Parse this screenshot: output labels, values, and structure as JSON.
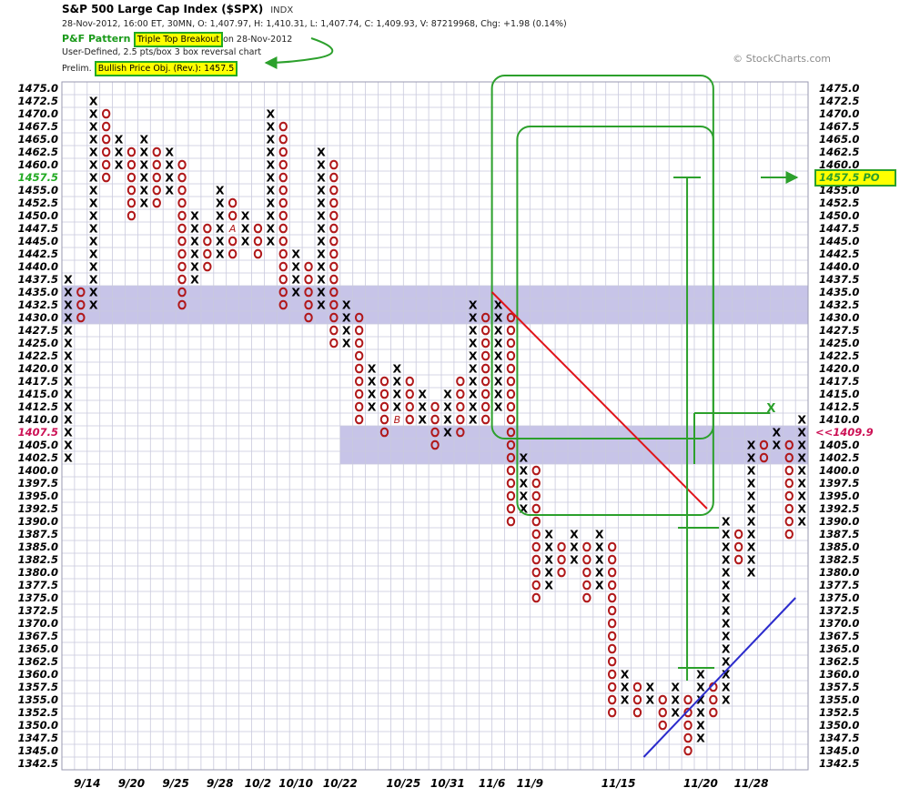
{
  "header": {
    "title": "S&P 500 Large Cap Index ($SPX)",
    "exchange": "INDX",
    "quote": "28-Nov-2012, 16:00 ET, 30MN, O: 1,407.97, H: 1,410.31, L: 1,407.74, C: 1,409.93, V: 87219968, Chg: +1.98 (0.14%)",
    "pattern_label": "P&F Pattern",
    "pattern_value": "Triple Top Breakout",
    "pattern_date": "on 28-Nov-2012",
    "chart_settings": "User-Defined, 2.5 pts/box 3 box reversal chart",
    "prelim_label": "Prelim.",
    "prelim_value": "Bullish Price Obj. (Rev.): 1457.5",
    "credit": "© StockCharts.com"
  },
  "chart_data": {
    "type": "point-and-figure",
    "box_size": 2.5,
    "reversal": 3,
    "ylim": [
      1342.5,
      1475.0
    ],
    "y_tick_labels": [
      "1475.0",
      "1472.5",
      "1470.0",
      "1467.5",
      "1465.0",
      "1462.5",
      "1460.0",
      "1457.5",
      "1455.0",
      "1452.5",
      "1450.0",
      "1447.5",
      "1445.0",
      "1442.5",
      "1440.0",
      "1437.5",
      "1435.0",
      "1432.5",
      "1430.0",
      "1427.5",
      "1425.0",
      "1422.5",
      "1420.0",
      "1417.5",
      "1415.0",
      "1412.5",
      "1410.0",
      "1407.5",
      "1405.0",
      "1402.5",
      "1400.0",
      "1397.5",
      "1395.0",
      "1392.5",
      "1390.0",
      "1387.5",
      "1385.0",
      "1382.5",
      "1380.0",
      "1377.5",
      "1375.0",
      "1372.5",
      "1370.0",
      "1367.5",
      "1365.0",
      "1362.5",
      "1360.0",
      "1357.5",
      "1355.0",
      "1352.5",
      "1350.0",
      "1347.5",
      "1345.0",
      "1342.5"
    ],
    "highlighted_left_labels": [
      {
        "price": 1457.5,
        "text": "1457.5",
        "color": "#22aa22"
      },
      {
        "price": 1407.5,
        "text": "1407.5",
        "color": "#cc1155"
      }
    ],
    "x_date_labels": [
      {
        "col": 2,
        "text": "9/14"
      },
      {
        "col": 5.5,
        "text": "9/20"
      },
      {
        "col": 9,
        "text": "9/25"
      },
      {
        "col": 12.5,
        "text": "9/28"
      },
      {
        "col": 15.5,
        "text": "10/2"
      },
      {
        "col": 18.5,
        "text": "10/10"
      },
      {
        "col": 22,
        "text": "10/22"
      },
      {
        "col": 27,
        "text": "10/25"
      },
      {
        "col": 30.5,
        "text": "10/31"
      },
      {
        "col": 34,
        "text": "11/6"
      },
      {
        "col": 37,
        "text": "11/9"
      },
      {
        "col": 44,
        "text": "11/15"
      },
      {
        "col": 50.5,
        "text": "11/20"
      },
      {
        "col": 54.5,
        "text": "11/28"
      }
    ],
    "columns": [
      {
        "type": "X",
        "low": 1402.5,
        "high": 1437.5
      },
      {
        "type": "O",
        "low": 1430.0,
        "high": 1435.0
      },
      {
        "type": "X",
        "low": 1432.5,
        "high": 1472.5
      },
      {
        "type": "O",
        "low": 1457.5,
        "high": 1470.0
      },
      {
        "type": "X",
        "low": 1460.0,
        "high": 1465.0
      },
      {
        "type": "O",
        "low": 1450.0,
        "high": 1462.5
      },
      {
        "type": "X",
        "low": 1452.5,
        "high": 1465.0
      },
      {
        "type": "O",
        "low": 1452.5,
        "high": 1462.5
      },
      {
        "type": "X",
        "low": 1455.0,
        "high": 1462.5
      },
      {
        "type": "O",
        "low": 1432.5,
        "high": 1460.0
      },
      {
        "type": "X",
        "low": 1437.5,
        "high": 1450.0
      },
      {
        "type": "O",
        "low": 1440.0,
        "high": 1447.5
      },
      {
        "type": "X",
        "low": 1442.5,
        "high": 1455.0
      },
      {
        "type": "O",
        "low": 1442.5,
        "high": 1452.5
      },
      {
        "type": "X",
        "low": 1445.0,
        "high": 1450.0
      },
      {
        "type": "O",
        "low": 1442.5,
        "high": 1447.5
      },
      {
        "type": "X",
        "low": 1445.0,
        "high": 1470.0
      },
      {
        "type": "O",
        "low": 1432.5,
        "high": 1467.5
      },
      {
        "type": "X",
        "low": 1435.0,
        "high": 1442.5
      },
      {
        "type": "O",
        "low": 1430.0,
        "high": 1440.0
      },
      {
        "type": "X",
        "low": 1432.5,
        "high": 1462.5
      },
      {
        "type": "O",
        "low": 1425.0,
        "high": 1460.0
      },
      {
        "type": "X",
        "low": 1425.0,
        "high": 1432.5
      },
      {
        "type": "O",
        "low": 1410.0,
        "high": 1430.0
      },
      {
        "type": "X",
        "low": 1412.5,
        "high": 1420.0
      },
      {
        "type": "O",
        "low": 1407.5,
        "high": 1417.5
      },
      {
        "type": "X",
        "low": 1410.0,
        "high": 1420.0
      },
      {
        "type": "O",
        "low": 1410.0,
        "high": 1417.5
      },
      {
        "type": "X",
        "low": 1410.0,
        "high": 1415.0
      },
      {
        "type": "O",
        "low": 1405.0,
        "high": 1412.5
      },
      {
        "type": "X",
        "low": 1407.5,
        "high": 1415.0
      },
      {
        "type": "O",
        "low": 1407.5,
        "high": 1417.5
      },
      {
        "type": "X",
        "low": 1410.0,
        "high": 1432.5
      },
      {
        "type": "O",
        "low": 1410.0,
        "high": 1430.0
      },
      {
        "type": "X",
        "low": 1412.5,
        "high": 1432.5
      },
      {
        "type": "O",
        "low": 1390.0,
        "high": 1430.0
      },
      {
        "type": "X",
        "low": 1392.5,
        "high": 1402.5
      },
      {
        "type": "O",
        "low": 1375.0,
        "high": 1400.0
      },
      {
        "type": "X",
        "low": 1377.5,
        "high": 1387.5
      },
      {
        "type": "O",
        "low": 1380.0,
        "high": 1385.0
      },
      {
        "type": "X",
        "low": 1382.5,
        "high": 1387.5
      },
      {
        "type": "O",
        "low": 1375.0,
        "high": 1385.0
      },
      {
        "type": "X",
        "low": 1377.5,
        "high": 1387.5
      },
      {
        "type": "O",
        "low": 1352.5,
        "high": 1385.0
      },
      {
        "type": "X",
        "low": 1355.0,
        "high": 1360.0
      },
      {
        "type": "O",
        "low": 1352.5,
        "high": 1357.5
      },
      {
        "type": "X",
        "low": 1355.0,
        "high": 1357.5
      },
      {
        "type": "O",
        "low": 1350.0,
        "high": 1355.0
      },
      {
        "type": "X",
        "low": 1352.5,
        "high": 1357.5
      },
      {
        "type": "O",
        "low": 1345.0,
        "high": 1355.0
      },
      {
        "type": "X",
        "low": 1347.5,
        "high": 1360.0
      },
      {
        "type": "O",
        "low": 1352.5,
        "high": 1357.5
      },
      {
        "type": "X",
        "low": 1355.0,
        "high": 1390.0
      },
      {
        "type": "O",
        "low": 1382.5,
        "high": 1387.5
      },
      {
        "type": "X",
        "low": 1380.0,
        "high": 1405.0
      },
      {
        "type": "O",
        "low": 1402.5,
        "high": 1405.0
      },
      {
        "type": "X",
        "low": 1405.0,
        "high": 1407.5
      },
      {
        "type": "O",
        "low": 1387.5,
        "high": 1405.0
      },
      {
        "type": "X",
        "low": 1390.0,
        "high": 1410.0
      }
    ],
    "month_markers": [
      {
        "col": 13,
        "price": 1447.5,
        "text": "A"
      },
      {
        "col": 26,
        "price": 1410.0,
        "text": "B"
      }
    ],
    "resistance_bands": [
      {
        "low": 1430.0,
        "high": 1435.0,
        "from_col": 0
      },
      {
        "low": 1402.5,
        "high": 1407.5,
        "from_col": 22
      }
    ],
    "price_objective": {
      "price": 1457.5,
      "label": "1457.5 PO"
    },
    "last_price_label": "<<1409.9",
    "bearish_trendline": {
      "from_col": 34,
      "from_price": 1435.0,
      "to_col": 51,
      "to_price": 1392.5
    },
    "bullish_trendline": {
      "from_col": 46,
      "from_price": 1345.0,
      "to_col": 58,
      "to_price": 1375.0
    },
    "target_bar": {
      "col": 49,
      "low": 1360.0,
      "base": 1390.0,
      "target": 1457.5
    },
    "green_boxes": [
      {
        "left_col": 34,
        "right_col": 51.5,
        "top": 1475.0,
        "bottom": 1405.0
      },
      {
        "left_col": 36,
        "right_col": 51.5,
        "top": 1465.0,
        "bottom": 1390.0
      }
    ],
    "breakout_tick": {
      "col": 55,
      "price": 1410.0,
      "text": "X"
    }
  }
}
